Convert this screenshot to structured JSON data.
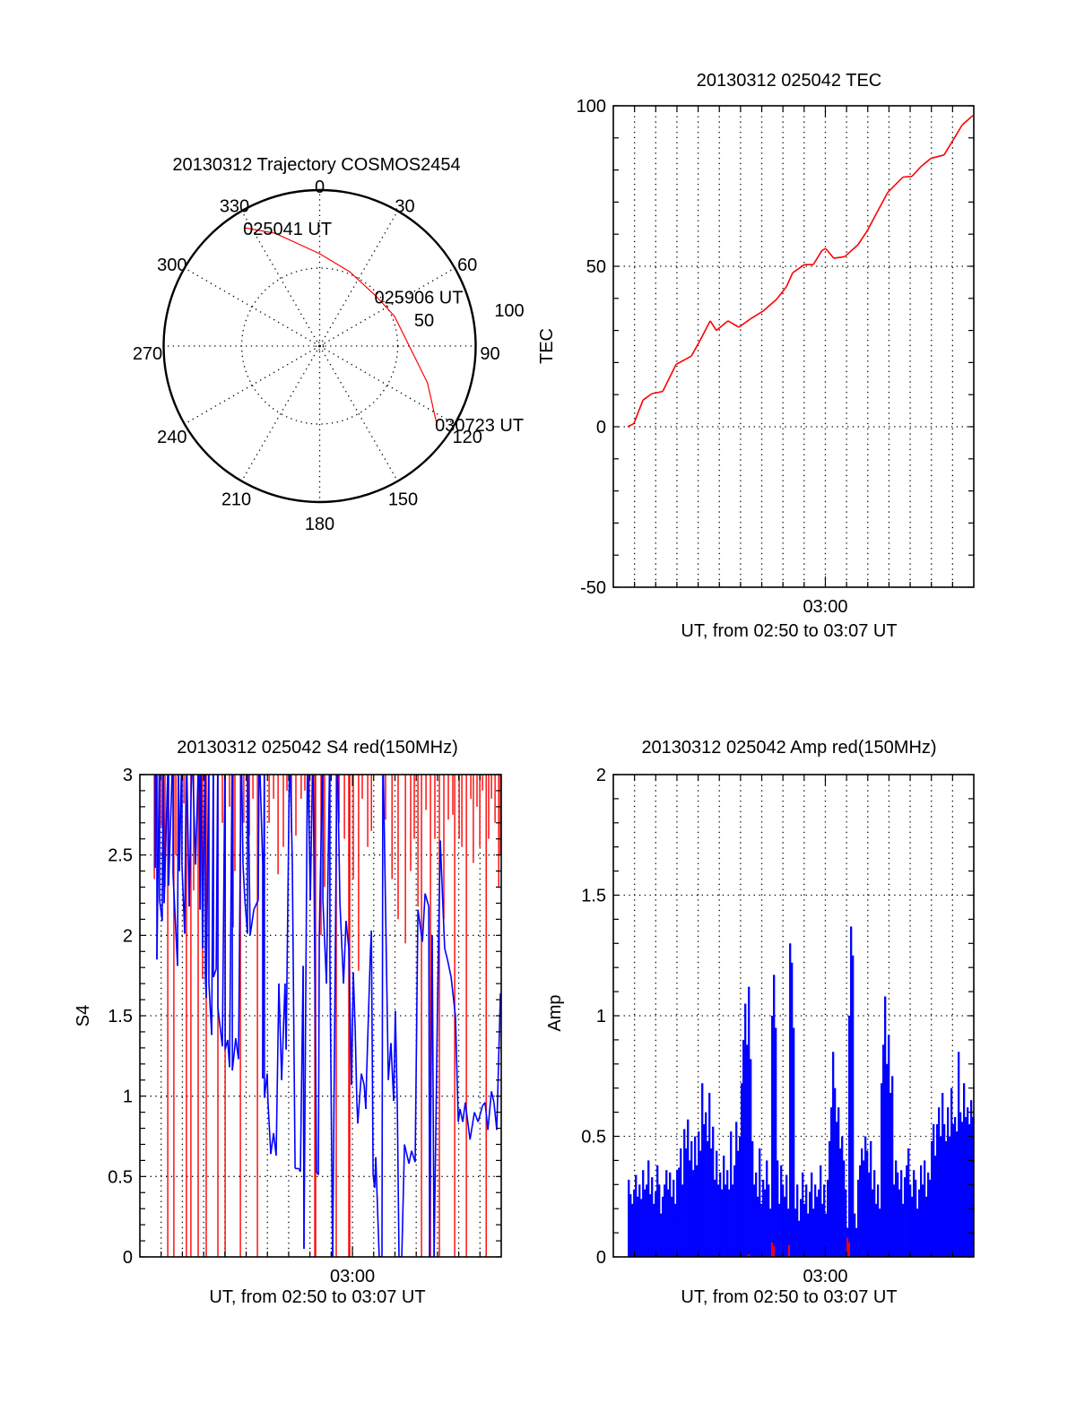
{
  "colors": {
    "red": "#ff0000",
    "blue": "#0000ff",
    "axis": "#000000",
    "background": "#ffffff"
  },
  "chart_data": [
    {
      "id": "trajectory",
      "type": "polar",
      "title": "20130312 Trajectory COSMOS2454",
      "angle_labels": [
        "0",
        "30",
        "60",
        "90",
        "120",
        "150",
        "180",
        "210",
        "240",
        "270",
        "300",
        "330"
      ],
      "angle_values": [
        0,
        30,
        60,
        90,
        120,
        150,
        180,
        210,
        240,
        270,
        300,
        330
      ],
      "radial_labels": [
        "50",
        "100"
      ],
      "radial_values": [
        50,
        100
      ],
      "rlim": [
        0,
        100
      ],
      "grid": true,
      "series": [
        {
          "name": "trajectory",
          "color": "#ff0000",
          "azimuth": [
            327.7,
            338.6,
            0,
            22,
            48.6,
            68.4,
            93.9,
            108.8,
            123.7
          ],
          "radius": [
            89.7,
            77.6,
            59.2,
            51.4,
            48.3,
            51.6,
            59.6,
            73.0,
            90.2
          ]
        }
      ],
      "annotations": [
        {
          "text": "025041 UT",
          "azimuth": 327.7,
          "radius": 89.7
        },
        {
          "text": "025906 UT",
          "azimuth": 48.6,
          "radius": 48.3
        },
        {
          "text": "030723 UT",
          "azimuth": 123.7,
          "radius": 90.2
        }
      ]
    },
    {
      "id": "tec",
      "type": "line",
      "title": "20130312 025042 TEC",
      "xlabel": "UT, from 02:50 to 03:07 UT",
      "ylabel": "TEC",
      "xlim_minutes_after_0250": [
        0,
        17
      ],
      "x_tick_labels": [
        "03:00"
      ],
      "x_tick_values": [
        10
      ],
      "ylim": [
        -50,
        100
      ],
      "y_tick_labels": [
        "100",
        "50",
        "0",
        "-50"
      ],
      "y_tick_values": [
        100,
        50,
        0,
        -50
      ],
      "grid": true,
      "series": [
        {
          "name": "TEC",
          "color": "#ff0000",
          "x": [
            0.68,
            0.97,
            1.4,
            1.82,
            2.33,
            2.96,
            3.68,
            4.1,
            4.57,
            4.86,
            5.41,
            5.92,
            6.47,
            7.06,
            7.7,
            8.16,
            8.46,
            9.01,
            9.43,
            9.85,
            10.02,
            10.4,
            10.91,
            11.54,
            11.97,
            12.43,
            12.94,
            13.66,
            14.08,
            14.5,
            14.97,
            15.6,
            16.03,
            16.45,
            16.96
          ],
          "y": [
            0,
            1,
            8.3,
            10.3,
            11,
            19.4,
            22,
            27,
            33,
            30,
            33,
            31,
            33.6,
            36,
            39.7,
            43.6,
            48,
            50.5,
            50.5,
            55,
            55.5,
            52.5,
            53,
            56.7,
            61,
            66.7,
            73,
            77.8,
            78,
            81,
            83.6,
            84.7,
            89.4,
            94,
            97
          ]
        }
      ]
    },
    {
      "id": "s4",
      "type": "line",
      "title": "20130312 025042 S4 red(150MHz)",
      "xlabel": "UT, from 02:50 to 03:07 UT",
      "ylabel": "S4",
      "xlim_minutes_after_0250": [
        0,
        17
      ],
      "x_tick_labels": [
        "03:00"
      ],
      "x_tick_values": [
        10
      ],
      "ylim": [
        0,
        3
      ],
      "y_tick_labels": [
        "3",
        "2.5",
        "2",
        "1.5",
        "1",
        "0.5",
        "0"
      ],
      "y_tick_values": [
        3,
        2.5,
        2,
        1.5,
        1,
        0.5,
        0
      ],
      "grid": true,
      "series": [
        {
          "name": "S4 blue",
          "color": "#0000ff",
          "x": [
            0.72,
            0.72,
            0.8,
            0.8,
            0.93,
            0.93,
            1.05,
            1.1,
            1.14,
            1.35,
            1.35,
            1.56,
            1.56,
            1.77,
            1.81,
            1.86,
            1.98,
            1.98,
            2.11,
            2.19,
            2.32,
            2.45,
            2.62,
            2.78,
            2.83,
            2.87,
            2.95,
            3.08,
            3.08,
            3.12,
            3.25,
            3.25,
            3.38,
            3.46,
            3.46,
            3.59,
            3.67,
            3.67,
            3.88,
            4.01,
            4.01,
            4.13,
            4.22,
            4.35,
            4.35,
            4.51,
            4.64,
            4.77,
            4.85,
            4.94,
            5.06,
            5.06,
            5.19,
            5.36,
            5.57,
            5.61,
            5.78,
            5.78,
            5.86,
            5.86,
            5.99,
            6.03,
            6.16,
            6.29,
            6.41,
            6.54,
            6.67,
            6.83,
            6.88,
            7.05,
            7.17,
            7.3,
            7.47,
            7.55,
            7.68,
            7.72,
            7.89,
            8.02,
            8.14,
            8.31,
            8.4,
            8.44,
            8.61,
            8.61,
            8.78,
            8.94,
            8.94,
            9.07,
            9.28,
            9.41,
            9.58,
            9.7,
            9.83,
            9.96,
            10.04,
            10.13,
            10.21,
            10.25,
            10.42,
            10.55,
            10.63,
            10.67,
            10.84,
            10.89,
            10.97,
            11.05,
            11.1,
            11.26,
            11.39,
            11.43,
            11.69,
            11.81,
            11.94,
            12.02,
            12.11,
            12.19,
            12.32,
            12.45,
            12.66,
            12.78,
            12.95,
            13.08,
            13.29,
            13.42,
            13.59,
            13.63,
            13.75,
            13.84,
            14.01,
            14.13,
            14.34,
            14.47,
            14.64,
            14.77,
            14.85,
            14.98,
            15.06,
            15.19,
            15.31,
            15.53,
            15.74,
            15.91,
            16.12,
            16.24,
            16.37,
            16.54,
            16.66,
            16.79,
            16.96
          ],
          "y": [
            3.2,
            2.42,
            3.2,
            1.85,
            3.2,
            2.22,
            2.09,
            3.2,
            2.2,
            3.2,
            2.31,
            3.2,
            2.38,
            1.81,
            3.2,
            2.4,
            3.2,
            2.44,
            2.01,
            3.2,
            2.18,
            3.2,
            2.44,
            3.2,
            2.16,
            3.2,
            1.92,
            3.2,
            1.75,
            1.61,
            3.2,
            1.7,
            1.38,
            3.2,
            1.74,
            1.79,
            3.2,
            1.55,
            1.31,
            3.2,
            1.29,
            1.35,
            1.18,
            3.2,
            1.16,
            1.36,
            1.23,
            3.2,
            2.44,
            2.22,
            2.01,
            3.2,
            2.0,
            2.16,
            2.22,
            3.2,
            2.44,
            1.11,
            3.2,
            0.99,
            1.14,
            0.96,
            0.64,
            0.77,
            0.63,
            1.7,
            1.1,
            1.7,
            1.29,
            3.2,
            2.46,
            0.55,
            0.55,
            0.53,
            1.81,
            0.05,
            3.2,
            2.22,
            3.2,
            0.53,
            0.51,
            2.0,
            3.2,
            2.22,
            1.7,
            3.2,
            1.85,
            0,
            3.2,
            2.2,
            1.7,
            2.09,
            1.92,
            1.07,
            1.77,
            1.42,
            0.96,
            0.83,
            1.14,
            1.07,
            0.92,
            1.14,
            1.88,
            2.03,
            0.51,
            0.43,
            0.62,
            0,
            0,
            3.2,
            1.1,
            1.33,
            0.97,
            1.53,
            0.94,
            0,
            0,
            0.7,
            0.58,
            0.66,
            0.59,
            2.16,
            1.96,
            2.26,
            2.18,
            0,
            2.0,
            0,
            1.62,
            2.59,
            1.92,
            1.85,
            1.74,
            1.59,
            1.49,
            0.84,
            0.92,
            0.84,
            0.96,
            0.73,
            0.9,
            0.84,
            0.94,
            0.96,
            0.79,
            1.03,
            0.96,
            0.79,
            1.64
          ]
        },
        {
          "name": "S4 red",
          "color": "#ff0000",
          "style": "drops-from-top",
          "x": [
            0.68,
            1.01,
            1.18,
            1.31,
            1.6,
            1.69,
            2.07,
            2.19,
            2.4,
            2.53,
            2.74,
            2.95,
            3.12,
            3.46,
            3.67,
            3.88,
            4.01,
            4.22,
            4.39,
            4.47,
            4.73,
            4.89,
            5.15,
            5.32,
            5.53,
            6.08,
            6.29,
            6.5,
            6.75,
            6.92,
            7.13,
            7.34,
            7.59,
            7.76,
            7.97,
            8.23,
            8.27,
            8.52,
            8.69,
            9.24,
            9.37,
            9.62,
            9.83,
            9.87,
            10.04,
            10.29,
            10.46,
            10.72,
            10.89,
            11.56,
            11.86,
            12.15,
            12.49,
            12.74,
            12.91,
            13.08,
            13.25,
            13.46,
            13.67,
            13.88,
            14.09,
            14.3,
            14.51,
            14.72,
            14.81,
            15.02,
            15.15,
            15.36,
            15.57,
            15.69,
            15.86,
            15.99,
            16.12,
            16.29,
            16.41,
            16.54,
            16.71,
            16.88,
            16.96
          ],
          "y": [
            2.35,
            2.68,
            2.3,
            0,
            0,
            2.5,
            2.82,
            0,
            0,
            2.28,
            0,
            1.73,
            0,
            2.05,
            0,
            2.7,
            0,
            2.8,
            2.05,
            2.4,
            0,
            2.7,
            2.62,
            2.85,
            0,
            2.7,
            2.85,
            2.38,
            2.55,
            2.9,
            2.64,
            2.62,
            2.85,
            2.9,
            2.6,
            0,
            0,
            2.0,
            2.3,
            0,
            2.7,
            2.6,
            0,
            0,
            2.35,
            1.78,
            2.85,
            2.55,
            2.65,
            2.72,
            2.35,
            2.1,
            1.95,
            2.4,
            2.6,
            2.18,
            0,
            2.78,
            0,
            2.6,
            0,
            2.1,
            2.72,
            2.75,
            0,
            2.6,
            2.55,
            0,
            2.85,
            2.45,
            2.8,
            2.55,
            2.9,
            0,
            2.6,
            2.85,
            2.7,
            2.3,
            2.5
          ]
        }
      ]
    },
    {
      "id": "amp",
      "type": "bar",
      "title": "20130312 025042 Amp red(150MHz)",
      "xlabel": "UT, from 02:50 to 03:07 UT",
      "ylabel": "Amp",
      "xlim_minutes_after_0250": [
        0,
        17
      ],
      "x_tick_labels": [
        "03:00"
      ],
      "x_tick_values": [
        10
      ],
      "ylim": [
        0,
        2
      ],
      "y_tick_labels": [
        "2",
        "1.5",
        "1",
        "0.5",
        "0"
      ],
      "y_tick_values": [
        2,
        1.5,
        1,
        0.5,
        0
      ],
      "grid": true,
      "series": [
        {
          "name": "Amp blue",
          "color": "#0000ff",
          "x_start": 0.68,
          "x_end": 17.0,
          "values": [
            0.32,
            0.26,
            0.22,
            0.28,
            0.34,
            0.25,
            0.3,
            0.24,
            0.36,
            0.28,
            0.3,
            0.4,
            0.26,
            0.33,
            0.22,
            0.27,
            0.38,
            0.3,
            0.18,
            0.25,
            0.3,
            0.36,
            0.28,
            0.35,
            0.25,
            0.32,
            0.22,
            0.36,
            0.37,
            0.45,
            0.3,
            0.53,
            0.45,
            0.57,
            0.4,
            0.48,
            0.36,
            0.5,
            0.38,
            0.52,
            0.44,
            0.72,
            0.55,
            0.6,
            0.48,
            0.68,
            0.45,
            0.54,
            0.32,
            0.44,
            0.3,
            0.35,
            0.28,
            0.42,
            0.3,
            0.36,
            0.28,
            0.52,
            0.3,
            0.38,
            0.56,
            0.44,
            0.5,
            0.72,
            0.9,
            1.05,
            0.88,
            1.12,
            0.82,
            0.48,
            0.3,
            0.35,
            0.25,
            0.45,
            0.22,
            0.32,
            0.28,
            0.4,
            0.3,
            0.2,
            1.0,
            1.17,
            0.95,
            0.4,
            0.22,
            0.38,
            0.3,
            0.25,
            0.34,
            0.2,
            1.3,
            1.22,
            0.95,
            0.2,
            0.3,
            0.15,
            0.24,
            0.35,
            0.22,
            0.3,
            0.18,
            0.27,
            0.35,
            0.2,
            0.3,
            0.25,
            0.28,
            0.38,
            0.22,
            0.3,
            0.18,
            0.32,
            0.48,
            0.62,
            0.85,
            0.7,
            0.56,
            0.62,
            0.45,
            0.5,
            0.4,
            0.28,
            0.12,
            1.0,
            1.37,
            1.25,
            0.18,
            0.12,
            0.32,
            0.38,
            0.45,
            0.4,
            0.5,
            0.44,
            0.35,
            0.48,
            0.28,
            0.36,
            0.22,
            0.3,
            0.2,
            0.72,
            0.88,
            1.08,
            0.8,
            0.92,
            0.68,
            0.75,
            0.3,
            0.4,
            0.35,
            0.28,
            0.36,
            0.22,
            0.33,
            0.38,
            0.45,
            0.3,
            0.25,
            0.36,
            0.32,
            0.2,
            0.28,
            0.38,
            0.3,
            0.4,
            0.25,
            0.35,
            0.32,
            0.48,
            0.55,
            0.42,
            0.55,
            0.62,
            0.5,
            0.68,
            0.55,
            0.48,
            0.62,
            0.5,
            0.7,
            0.55,
            0.58,
            0.52,
            0.85,
            0.6,
            0.56,
            0.72,
            0.58,
            0.62,
            0.55,
            0.65,
            0.58
          ]
        },
        {
          "name": "Amp red",
          "color": "#ff0000",
          "x": [
            6.38,
            7.48,
            7.57,
            8.29,
            11.04,
            11.12
          ],
          "values": [
            0.01,
            0.06,
            0.045,
            0.05,
            0.08,
            0.06
          ]
        }
      ]
    }
  ]
}
